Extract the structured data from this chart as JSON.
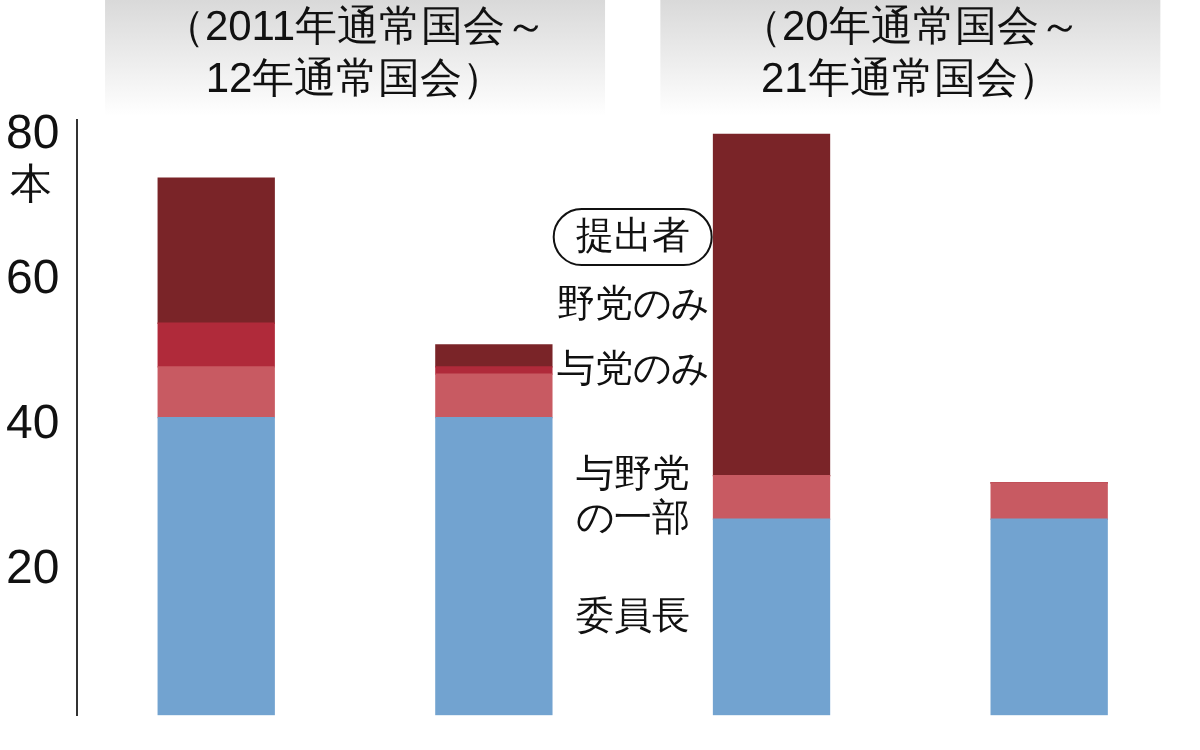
{
  "chart_data": {
    "type": "bar",
    "stacked": true,
    "categories": [
      null,
      null,
      null,
      null
    ],
    "series": [
      {
        "name": "委員長",
        "color": "#72a3d0",
        "values": [
          41,
          41,
          27,
          27
        ]
      },
      {
        "name": "与野党の一部",
        "color": "#c85a62",
        "values": [
          7,
          6,
          6,
          5
        ]
      },
      {
        "name": "与党のみ",
        "color": "#b02a3a",
        "values": [
          6,
          1,
          0,
          0
        ]
      },
      {
        "name": "野党のみ",
        "color": "#7a2428",
        "values": [
          20,
          3,
          47,
          0
        ]
      }
    ],
    "ylim": [
      0,
      82
    ],
    "yticks": [
      20,
      40,
      60,
      80
    ],
    "ylabel": "本",
    "legend_title": "提出者",
    "tick_labels": "y",
    "grid": false,
    "legend": false,
    "annotations": [
      "（2011年通常国会～\n12年通常国会）",
      "（20年通常国会～\n21年通常国会）"
    ]
  }
}
